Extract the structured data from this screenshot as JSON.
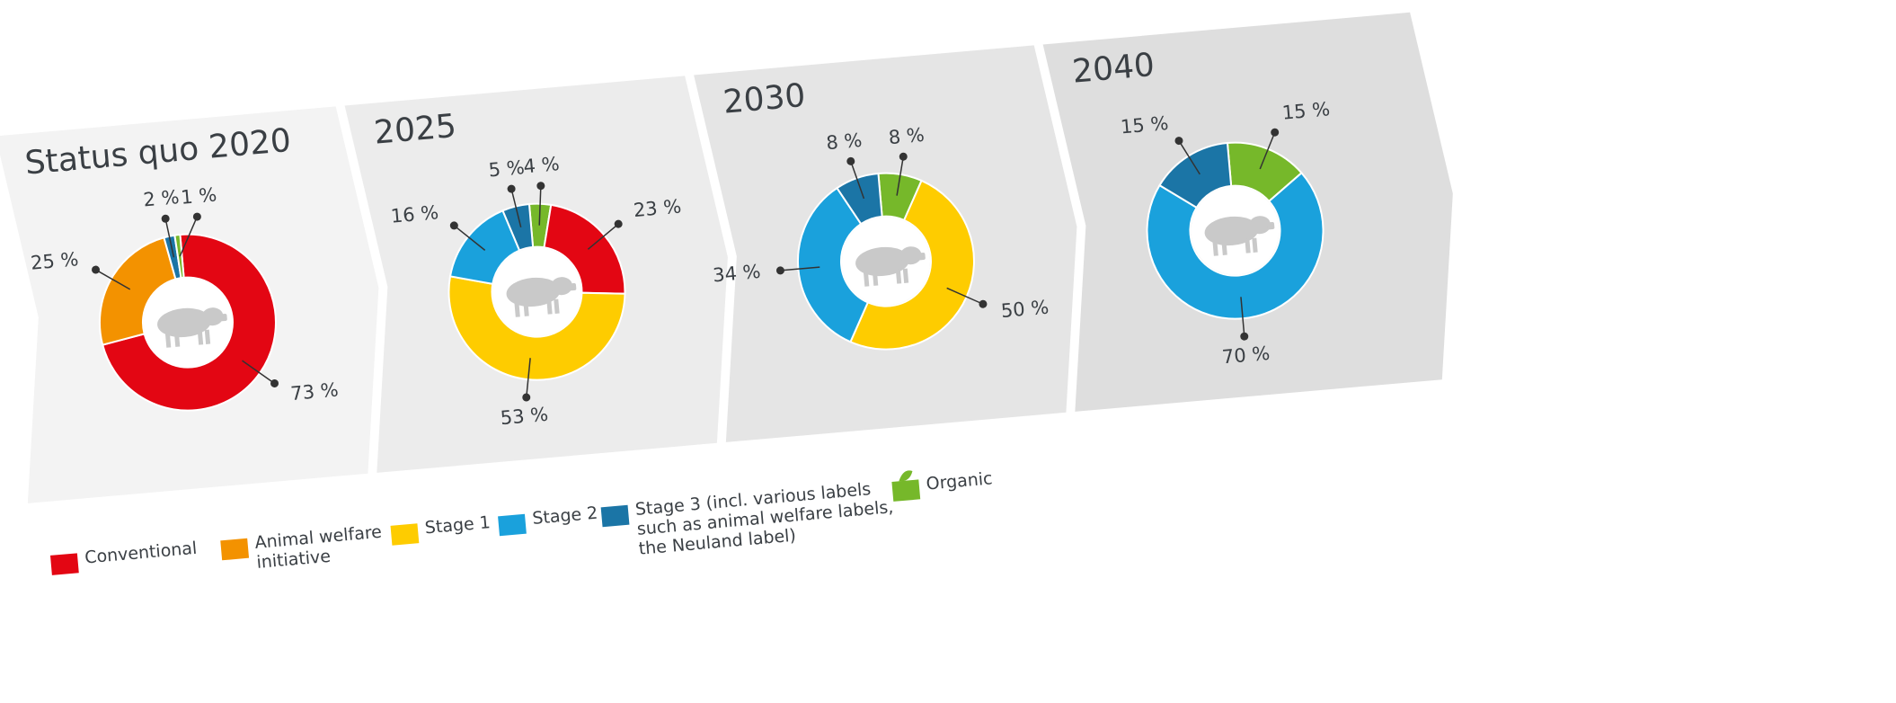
{
  "chart_data": [
    {
      "type": "pie",
      "title": "Status quo 2020",
      "values": [
        73,
        25,
        2,
        1
      ],
      "value_labels": [
        "73 %",
        "25 %",
        "2 %",
        "1 %"
      ],
      "colors": [
        "#e30613",
        "#f39200",
        "#1b75a6",
        "#76b82a"
      ]
    },
    {
      "type": "pie",
      "title": "2025",
      "values": [
        4,
        23,
        53,
        16,
        5
      ],
      "value_labels": [
        "4 %",
        "23 %",
        "53 %",
        "16 %",
        "5 %"
      ],
      "colors": [
        "#76b82a",
        "#e30613",
        "#fecc00",
        "#1aa1dc",
        "#1b75a6"
      ]
    },
    {
      "type": "pie",
      "title": "2030",
      "values": [
        8,
        50,
        34,
        8
      ],
      "value_labels": [
        "8 %",
        "50 %",
        "34 %",
        "8 %"
      ],
      "colors": [
        "#76b82a",
        "#fecc00",
        "#1aa1dc",
        "#1b75a6"
      ]
    },
    {
      "type": "pie",
      "title": "2040",
      "values": [
        15,
        70,
        15
      ],
      "value_labels": [
        "15 %",
        "70 %",
        "15 %"
      ],
      "colors": [
        "#76b82a",
        "#1aa1dc",
        "#1b75a6"
      ]
    }
  ],
  "legend": [
    {
      "name": "Conventional",
      "color": "#e30613"
    },
    {
      "name": "Animal welfare initiative",
      "color": "#f39200"
    },
    {
      "name": "Stage 1",
      "color": "#fecc00"
    },
    {
      "name": "Stage 2",
      "color": "#1aa1dc"
    },
    {
      "name": "Stage 3 (incl. various labels such as animal welfare labels, the Neuland label)",
      "color": "#1b75a6"
    },
    {
      "name": "Organic",
      "color": "#76b82a"
    }
  ]
}
